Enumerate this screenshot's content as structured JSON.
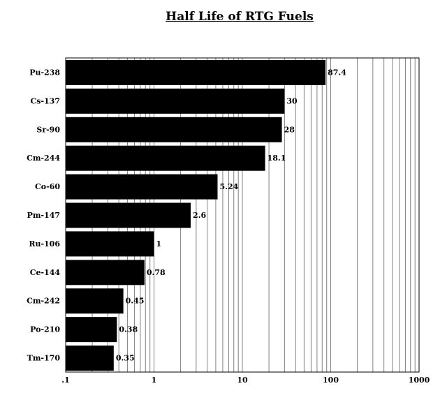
{
  "chart_data": {
    "type": "bar",
    "orientation": "horizontal",
    "title": "Half Life of RTG Fuels",
    "xlabel": "",
    "ylabel": "",
    "x_scale": "log",
    "xlim": [
      0.1,
      1000
    ],
    "x_ticks": [
      ".1",
      "1",
      "10",
      "100",
      "1000"
    ],
    "grid": "vertical minor and major",
    "bar_color": "#000000",
    "categories": [
      "Pu-238",
      "Cs-137",
      "Sr-90",
      "Cm-244",
      "Co-60",
      "Pm-147",
      "Ru-106",
      "Ce-144",
      "Cm-242",
      "Po-210",
      "Tm-170"
    ],
    "values": [
      87.4,
      30,
      28,
      18.1,
      5.24,
      2.6,
      1,
      0.78,
      0.45,
      0.38,
      0.35
    ],
    "value_labels": [
      "87.4",
      "30",
      "28",
      "18.1",
      "5.24",
      "2.6",
      "1",
      "0.78",
      "0.45",
      "0.38",
      "0.35"
    ]
  }
}
